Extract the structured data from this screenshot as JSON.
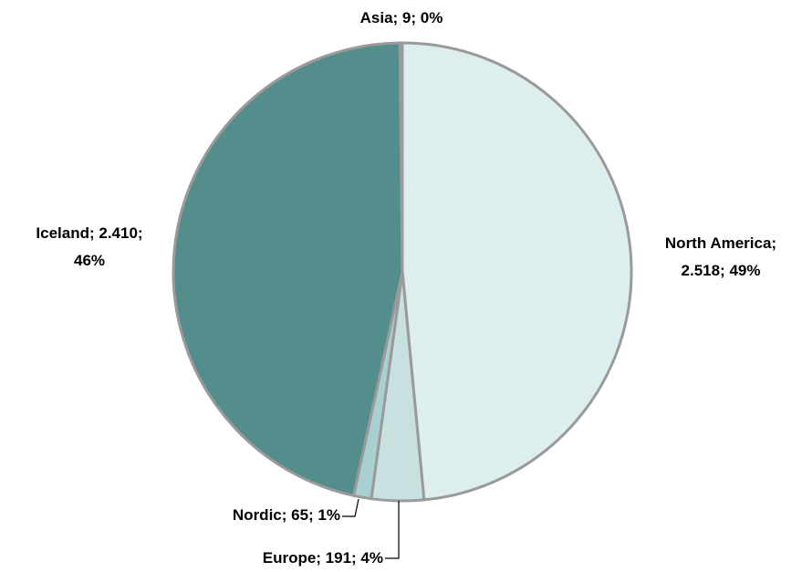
{
  "chart_data": {
    "type": "pie",
    "slices": [
      {
        "name": "North America",
        "value": 2518,
        "label_line1": "North America;",
        "label_line2": "2.518; 49%",
        "color": "#ddeeee"
      },
      {
        "name": "Europe",
        "value": 191,
        "label_line1": "Europe; 191; 4%",
        "color": "#c8e0e0"
      },
      {
        "name": "Nordic",
        "value": 65,
        "label_line1": "Nordic; 65; 1%",
        "color": "#a9d0d0"
      },
      {
        "name": "Iceland",
        "value": 2410,
        "label_line1": "Iceland; 2.410;",
        "label_line2": "46%",
        "color": "#538d8c"
      },
      {
        "name": "Asia",
        "value": 9,
        "label_line1": "Asia; 9; 0%",
        "color": "#8aa8a8"
      }
    ],
    "outline_color": "#9a9a9a",
    "legend": "none"
  }
}
